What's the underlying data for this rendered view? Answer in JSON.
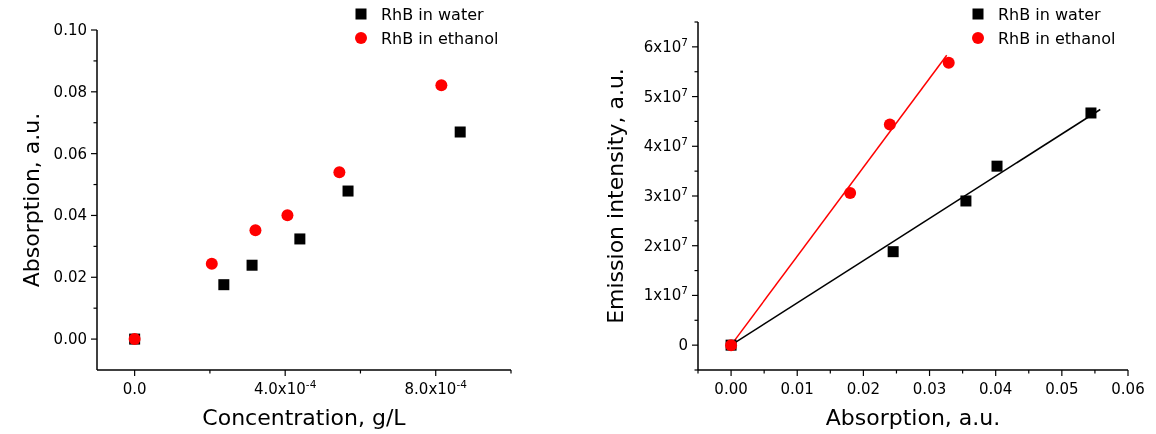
{
  "chart_data": [
    {
      "type": "scatter",
      "xlabel": "Concentration, g/L",
      "ylabel": "Absorption, a.u.",
      "xlim": [
        -0.0001,
        0.001
      ],
      "ylim": [
        -0.01,
        0.1
      ],
      "xticks": [
        {
          "value": 0,
          "label": "0.0"
        },
        {
          "value": 0.0002,
          "label": null
        },
        {
          "value": 0.0004,
          "label": "4.0x10$^{-4}$"
        },
        {
          "value": 0.0006,
          "label": null
        },
        {
          "value": 0.0008,
          "label": "8.0x10$^{-4}$"
        },
        {
          "value": 0.001,
          "label": null
        }
      ],
      "yticks": [
        {
          "value": 0,
          "label": "0.00"
        },
        {
          "value": 0.01,
          "label": null
        },
        {
          "value": 0.02,
          "label": "0.02"
        },
        {
          "value": 0.03,
          "label": null
        },
        {
          "value": 0.04,
          "label": "0.04"
        },
        {
          "value": 0.05,
          "label": null
        },
        {
          "value": 0.06,
          "label": "0.06"
        },
        {
          "value": 0.07,
          "label": null
        },
        {
          "value": 0.08,
          "label": "0.08"
        },
        {
          "value": 0.09,
          "label": null
        },
        {
          "value": 0.1,
          "label": "0.10"
        }
      ],
      "legend": "top right",
      "series": [
        {
          "name": "RhB in water",
          "color": "#000000",
          "marker": "square",
          "x": [
            0,
            0.000237,
            0.000312,
            0.000439,
            0.000567,
            0.000865
          ],
          "values": [
            0,
            0.0176,
            0.0239,
            0.0324,
            0.0479,
            0.067
          ]
        },
        {
          "name": "RhB in ethanol",
          "color": "#ff0000",
          "marker": "circle",
          "x": [
            0,
            0.000205,
            0.000321,
            0.000406,
            0.000544,
            0.000815
          ],
          "values": [
            0,
            0.0244,
            0.0352,
            0.0401,
            0.054,
            0.0821
          ]
        }
      ]
    },
    {
      "type": "scatter",
      "xlabel": "Absorption, a.u.",
      "ylabel": "Emission intensity, a.u.",
      "xlim": [
        -0.005,
        0.06
      ],
      "ylim": [
        -5000000,
        65000000
      ],
      "xticks": [
        {
          "value": -0.005,
          "label": null
        },
        {
          "value": 0,
          "label": "0.00"
        },
        {
          "value": 0.005,
          "label": null
        },
        {
          "value": 0.01,
          "label": "0.01"
        },
        {
          "value": 0.015,
          "label": null
        },
        {
          "value": 0.02,
          "label": "0.02"
        },
        {
          "value": 0.025,
          "label": null
        },
        {
          "value": 0.03,
          "label": "0.03"
        },
        {
          "value": 0.035,
          "label": null
        },
        {
          "value": 0.04,
          "label": "0.04"
        },
        {
          "value": 0.045,
          "label": null
        },
        {
          "value": 0.05,
          "label": "0.05"
        },
        {
          "value": 0.055,
          "label": null
        },
        {
          "value": 0.06,
          "label": "0.06"
        }
      ],
      "yticks": [
        {
          "value": -5000000,
          "label": null
        },
        {
          "value": 0,
          "label": "0"
        },
        {
          "value": 5000000,
          "label": null
        },
        {
          "value": 10000000,
          "label": "1x10$^{7}$"
        },
        {
          "value": 15000000,
          "label": null
        },
        {
          "value": 20000000,
          "label": "2x10$^{7}$"
        },
        {
          "value": 25000000,
          "label": null
        },
        {
          "value": 30000000,
          "label": "3x10$^{7}$"
        },
        {
          "value": 35000000,
          "label": null
        },
        {
          "value": 40000000,
          "label": "4x10$^{7}$"
        },
        {
          "value": 45000000,
          "label": null
        },
        {
          "value": 50000000,
          "label": "5x10$^{7}$"
        },
        {
          "value": 55000000,
          "label": null
        },
        {
          "value": 60000000,
          "label": "6x10$^{7}$"
        },
        {
          "value": 65000000,
          "label": null
        }
      ],
      "legend": "top right",
      "series": [
        {
          "type": "line",
          "color": "#ff0000",
          "x": [
            0,
            0.0326
          ],
          "values": [
            0,
            58300000
          ]
        },
        {
          "type": "line",
          "color": "#000000",
          "x": [
            0,
            0.0558
          ],
          "values": [
            0,
            47400000
          ]
        },
        {
          "name": "RhB in water",
          "color": "#000000",
          "marker": "square",
          "x": [
            0,
            0.0245,
            0.0355,
            0.0402,
            0.0544
          ],
          "values": [
            0,
            18800000,
            29000000,
            36000000,
            46700000
          ]
        },
        {
          "name": "RhB in ethanol",
          "color": "#ff0000",
          "marker": "circle",
          "x": [
            0,
            0.018,
            0.024,
            0.0329
          ],
          "values": [
            0,
            30600000,
            44400000,
            56800000
          ]
        }
      ]
    }
  ]
}
